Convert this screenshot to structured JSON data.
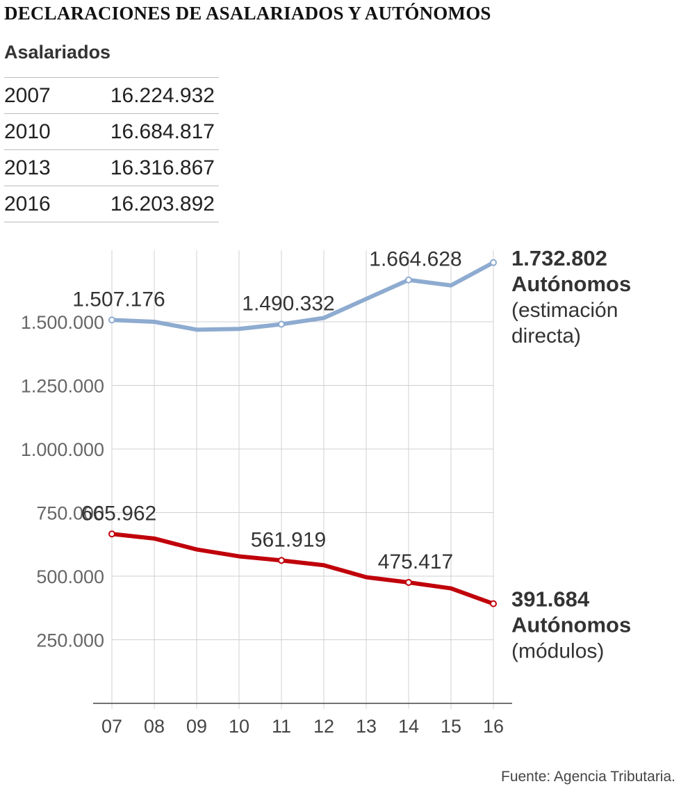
{
  "title": "DECLARACIONES DE ASALARIADOS Y AUTÓNOMOS",
  "table": {
    "heading": "Asalariados",
    "rows": [
      {
        "year": "2007",
        "value": "16.224.932"
      },
      {
        "year": "2010",
        "value": "16.684.817"
      },
      {
        "year": "2013",
        "value": "16.316.867"
      },
      {
        "year": "2016",
        "value": "16.203.892"
      }
    ]
  },
  "chart_data": {
    "type": "line",
    "categories": [
      "07",
      "08",
      "09",
      "10",
      "11",
      "12",
      "13",
      "14",
      "15",
      "16"
    ],
    "ylim": [
      0,
      1750000
    ],
    "yticks": [
      250000,
      500000,
      750000,
      1000000,
      1250000,
      1500000
    ],
    "ytick_labels": [
      "250.000",
      "500.000",
      "750.000",
      "1.000.000",
      "1.250.000",
      "1.500.000"
    ],
    "grid": true,
    "series": [
      {
        "id": "directa",
        "color": "#8eabd0",
        "values": [
          1507176,
          1500000,
          1469000,
          1472000,
          1490332,
          1515000,
          1590000,
          1664628,
          1643000,
          1732802
        ],
        "marker_indices": [
          0,
          4,
          7,
          9
        ],
        "value_labels": [
          {
            "index": 0,
            "text": "1.507.176"
          },
          {
            "index": 4,
            "text": "1.490.332"
          },
          {
            "index": 7,
            "text": "1.664.628"
          }
        ],
        "end_label": [
          "1.732.802",
          "Autónomos",
          "(estimación",
          "directa)"
        ]
      },
      {
        "id": "modulos",
        "color": "#c0000a",
        "values": [
          665962,
          648000,
          605000,
          578000,
          561919,
          543000,
          496000,
          475417,
          452000,
          391684
        ],
        "marker_indices": [
          0,
          4,
          7,
          9
        ],
        "value_labels": [
          {
            "index": 0,
            "text": "665.962"
          },
          {
            "index": 4,
            "text": "561.919"
          },
          {
            "index": 7,
            "text": "475.417"
          }
        ],
        "end_label": [
          "391.684",
          "Autónomos",
          "(módulos)"
        ]
      }
    ]
  },
  "source": "Fuente: Agencia Tributaria."
}
